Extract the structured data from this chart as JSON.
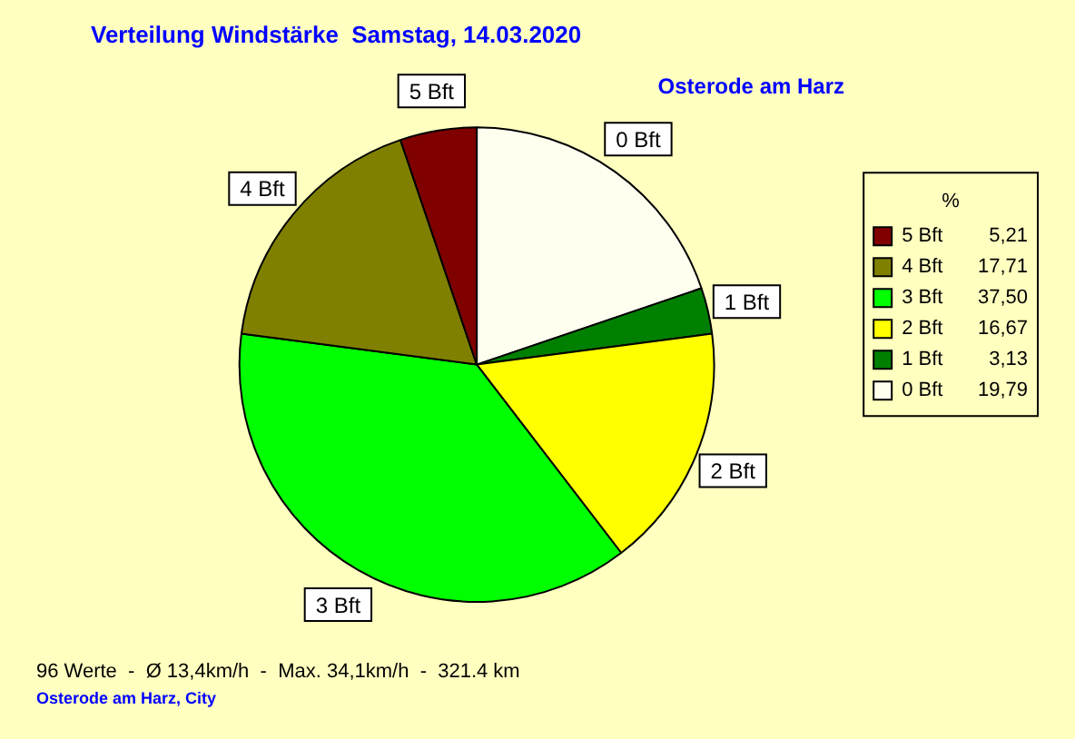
{
  "chart_data": {
    "type": "pie",
    "title": "Verteilung Windstärke  Samstag, 14.03.2020",
    "subtitle": "Osterode am Harz",
    "categories": [
      "0 Bft",
      "1 Bft",
      "2 Bft",
      "3 Bft",
      "4 Bft",
      "5 Bft"
    ],
    "values": [
      19.79,
      3.13,
      16.67,
      37.5,
      17.71,
      5.21
    ],
    "value_labels": [
      "19,79",
      "3,13",
      "16,67",
      "37,50",
      "17,71",
      "5,21"
    ],
    "colors": [
      "#fffff0",
      "#008000",
      "#ffff00",
      "#00ff00",
      "#808000",
      "#800000"
    ],
    "legend": "right",
    "legend_title": "%",
    "annotations": [
      "96 Werte  -  Ø 13,4km/h  -  Max. 34,1km/h  -  321.4 km",
      "Osterode am Harz, City"
    ]
  }
}
